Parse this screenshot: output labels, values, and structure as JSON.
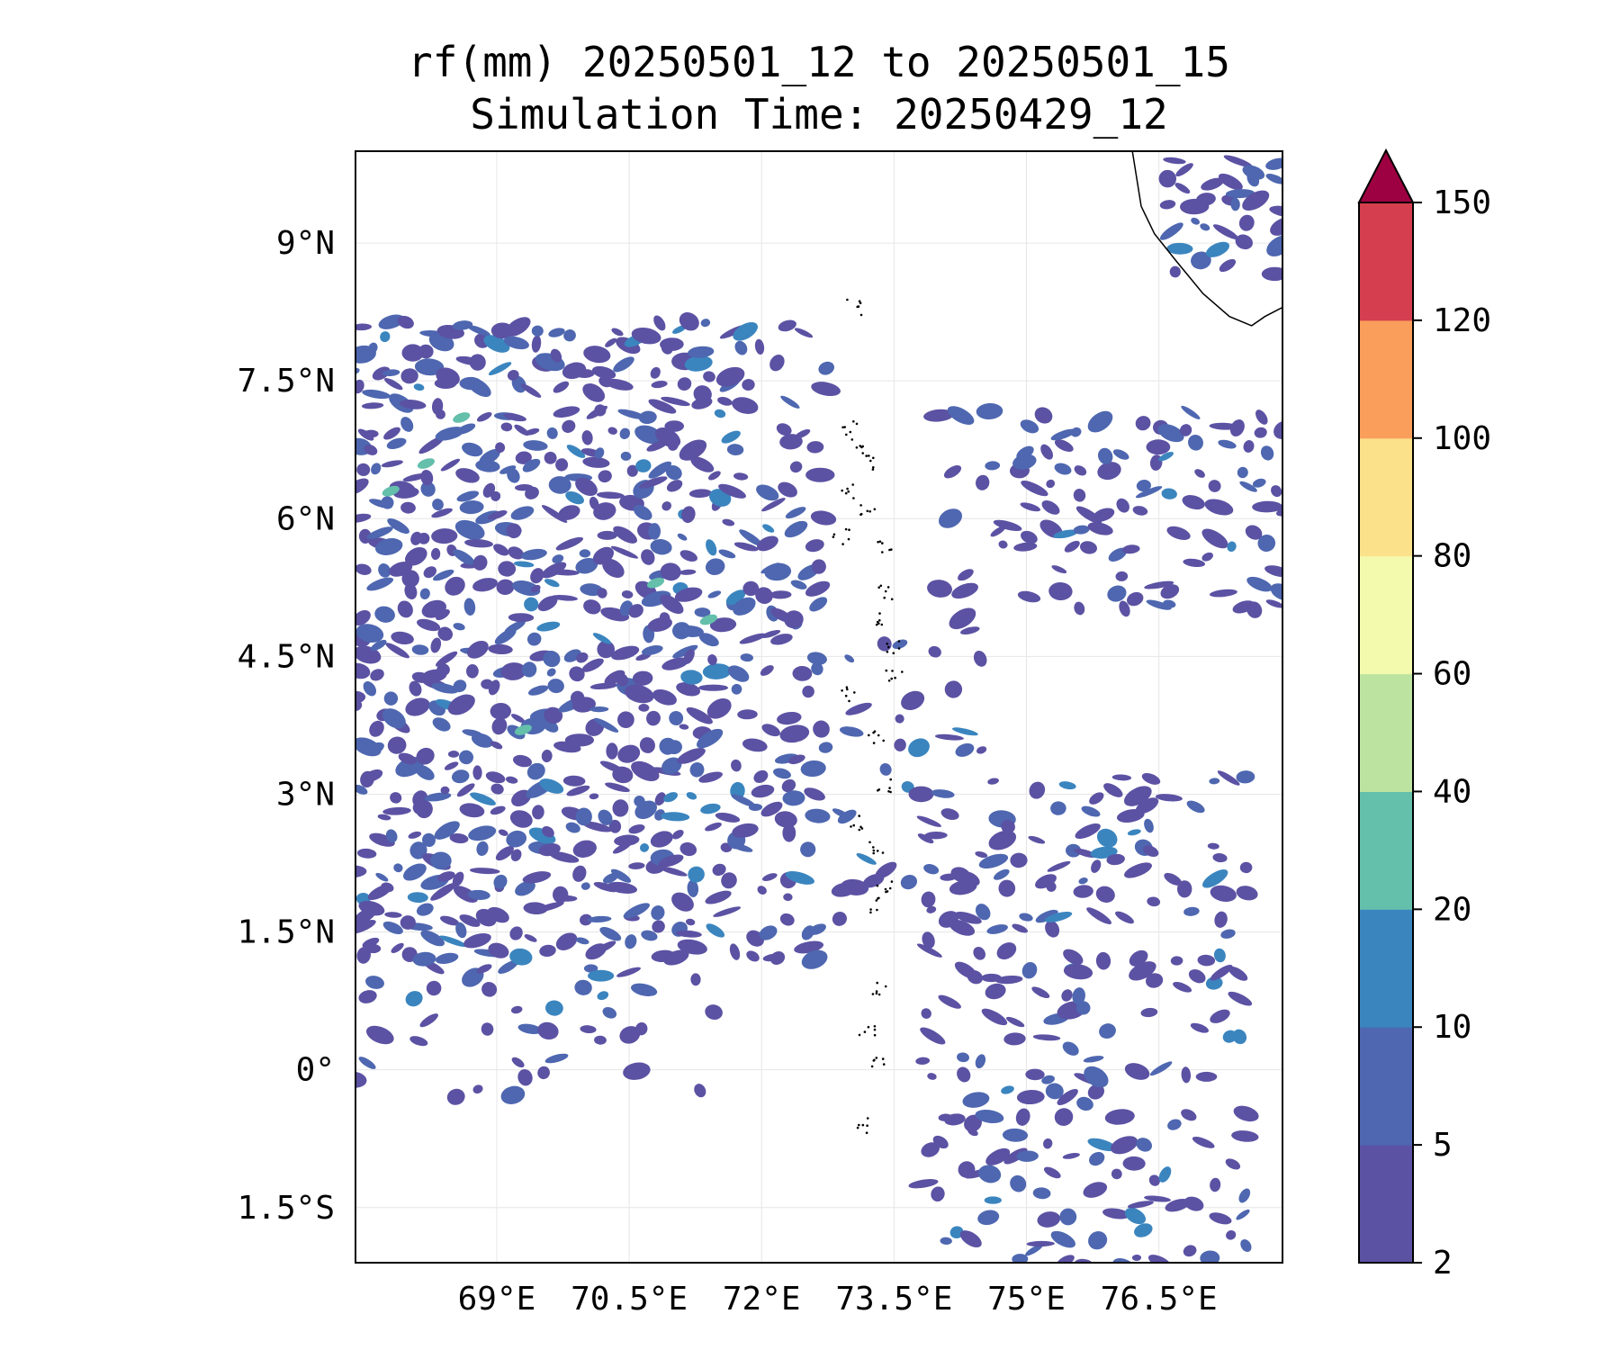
{
  "title": "rf(mm) 20250501_12 to 20250501_15",
  "subtitle": "Simulation Time: 20250429_12",
  "map": {
    "lon_range": [
      67.4,
      77.9
    ],
    "lat_range": [
      -2.1,
      10.0
    ],
    "lon_ticks": [
      69.0,
      70.5,
      72.0,
      73.5,
      75.0,
      76.5
    ],
    "lon_tick_labels": [
      "69°E",
      "70.5°E",
      "72°E",
      "73.5°E",
      "75°E",
      "76.5°E"
    ],
    "lat_ticks": [
      9.0,
      7.5,
      6.0,
      4.5,
      3.0,
      1.5,
      0.0,
      -1.5
    ],
    "lat_tick_labels": [
      "9°N",
      "7.5°N",
      "6°N",
      "4.5°N",
      "3°N",
      "1.5°N",
      "0°",
      "1.5°S"
    ],
    "gridlines": true,
    "field": "rainfall accumulation (mm)"
  },
  "colorbar": {
    "levels": [
      2,
      5,
      10,
      20,
      40,
      60,
      80,
      100,
      120,
      150
    ],
    "colors": [
      "#5b52a3",
      "#4e67b0",
      "#3b85bf",
      "#64bfab",
      "#bde3a1",
      "#f3faad",
      "#fce18b",
      "#f99e5b",
      "#d53e4f"
    ],
    "extend_color": "#9e0142",
    "extend": "max"
  },
  "colors": {
    "coastline": "#000000",
    "gridline": "#e6e6e6"
  }
}
